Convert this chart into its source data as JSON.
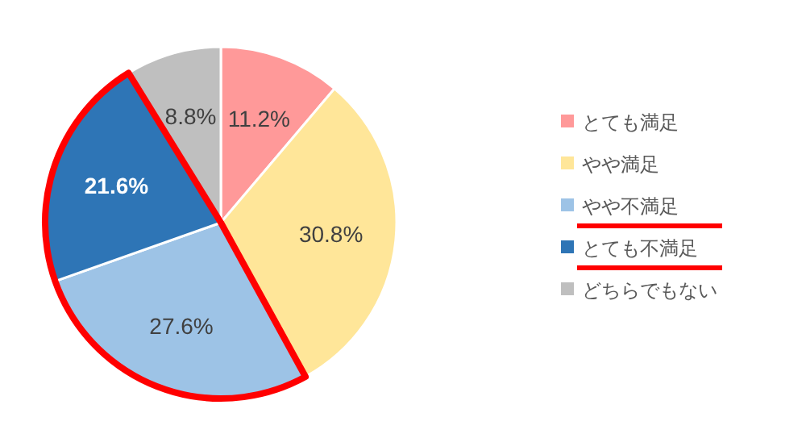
{
  "chart_data": {
    "type": "pie",
    "categories": [
      "とても満足",
      "やや満足",
      "やや不満足",
      "とても不満足",
      "どちらでもない"
    ],
    "values": [
      11.2,
      30.8,
      27.6,
      21.6,
      8.8
    ],
    "colors": [
      "#ff9999",
      "#ffe699",
      "#9dc3e6",
      "#2e75b6",
      "#bfbfbf"
    ],
    "value_labels": [
      "11.2%",
      "30.8%",
      "27.6%",
      "21.6%",
      "8.8%"
    ],
    "legend": "right"
  }
}
